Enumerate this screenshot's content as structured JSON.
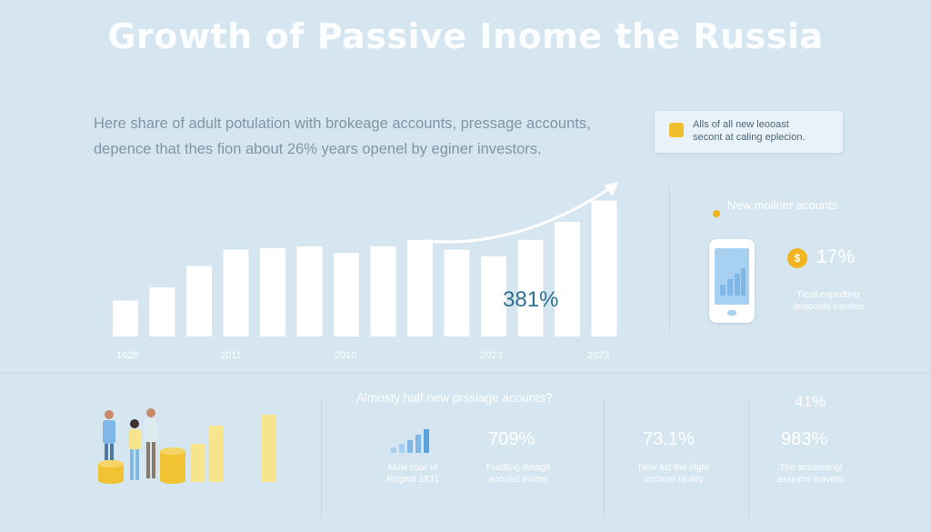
{
  "title": "Growth  of Passive Inome the Russia",
  "intro_lines": [
    "Here share of adult potulation with brokeage accounts, pressage accounts,",
    "depence that thes fion about 26% years openel by eginer investors."
  ],
  "note": {
    "lines": [
      "Alls of all new leooast",
      "secont at caling eplecion."
    ],
    "icon": "lock-icon"
  },
  "chart_data": {
    "type": "bar",
    "values": [
      22,
      30,
      43,
      53,
      54,
      55,
      51,
      55,
      59,
      53,
      49,
      59,
      70,
      83
    ],
    "ylim": [
      0,
      100
    ],
    "x_tick_labels": [
      "1028",
      "2011",
      "2010",
      "2023",
      "2023"
    ],
    "annotation": "381%",
    "trend_arrow": "up"
  },
  "side_panel": {
    "label": "New moilner acounts",
    "coin_symbol": "$",
    "percent": "17%",
    "caption_lines": [
      "Ticall expedting",
      "aeaounts inavites"
    ]
  },
  "bottom": {
    "heading": "Almosty half new prssiage acounts?",
    "top_right_percent": "41%",
    "stats": [
      {
        "caption_lines": [
          "Mow cour of",
          "Rogeat 1931"
        ]
      },
      {
        "value": "709%",
        "caption_lines": [
          "Fradting detagh",
          "accunst invites"
        ]
      },
      {
        "value": "73.1%",
        "caption_lines": [
          "New ast the olght",
          "account ravility"
        ]
      },
      {
        "value": "983%",
        "caption_lines": [
          "The accomangt",
          "asseime inavites"
        ]
      }
    ]
  },
  "colors": {
    "background": "#d5e6f0",
    "bar": "#ffffff",
    "accent_yellow": "#f7e58e",
    "coin": "#f1b51f",
    "icon_blue": "#7fb8e6",
    "annotation": "#2f6f8f"
  }
}
